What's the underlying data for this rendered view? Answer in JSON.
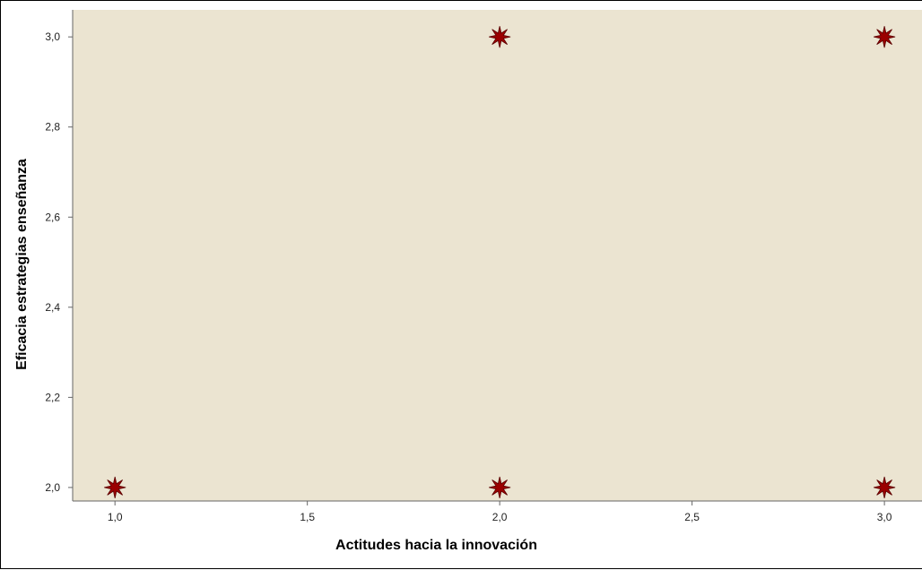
{
  "chart_data": {
    "type": "scatter",
    "title": "",
    "xlabel": "Actitudes hacia la innovación",
    "ylabel": "Eficacia estrategias enseñanza",
    "xlim": [
      0.89,
      3.1
    ],
    "ylim": [
      1.97,
      3.06
    ],
    "x_ticks": [
      1.0,
      1.5,
      2.0,
      2.5,
      3.0
    ],
    "x_tick_labels": [
      "1,0",
      "1,5",
      "2,0",
      "2,5",
      "3,0"
    ],
    "y_ticks": [
      2.0,
      2.2,
      2.4,
      2.6,
      2.8,
      3.0
    ],
    "y_tick_labels": [
      "2,0",
      "2,2",
      "2,4",
      "2,6",
      "2,8",
      "3,0"
    ],
    "grid": false,
    "plot_background": "#ebe4d1",
    "marker": "star",
    "marker_color": "#9b0000",
    "points": [
      {
        "x": 1.0,
        "y": 2.0
      },
      {
        "x": 2.0,
        "y": 2.0
      },
      {
        "x": 3.0,
        "y": 2.0
      },
      {
        "x": 2.0,
        "y": 3.0
      },
      {
        "x": 3.0,
        "y": 3.0
      }
    ]
  }
}
